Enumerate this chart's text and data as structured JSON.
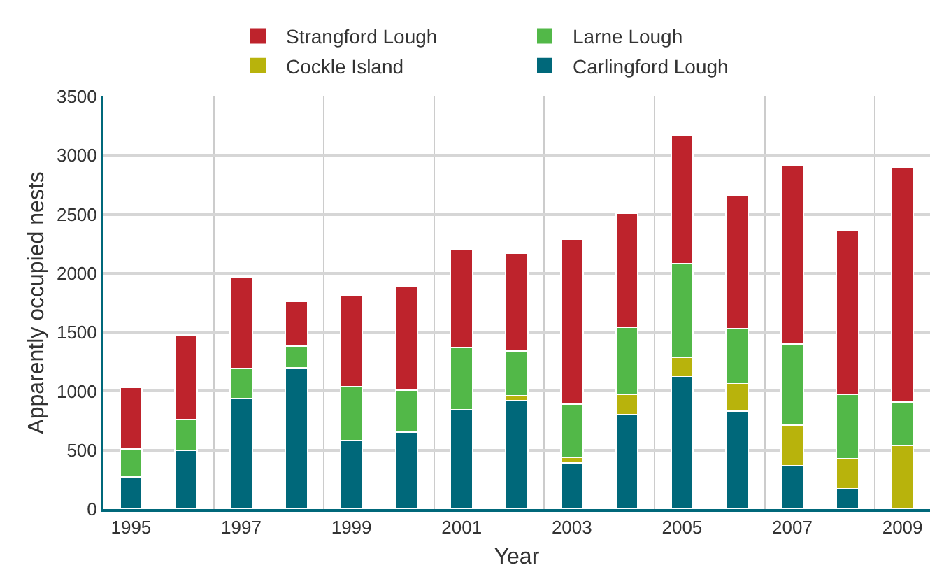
{
  "chart_data": {
    "type": "bar",
    "stacked": true,
    "xlabel": "Year",
    "ylabel": "Apparently occupied nests",
    "categories": [
      "1995",
      null,
      "1997",
      null,
      "1999",
      null,
      "2001",
      null,
      "2003",
      null,
      "2005",
      null,
      "2007",
      null,
      "2009"
    ],
    "series": [
      {
        "name": "Carlingford Lough",
        "color": "#00687a",
        "values": [
          270,
          500,
          940,
          1200,
          580,
          650,
          840,
          920,
          390,
          800,
          1130,
          830,
          370,
          170,
          0
        ]
      },
      {
        "name": "Cockle Island",
        "color": "#b8b30c",
        "values": [
          0,
          0,
          0,
          0,
          0,
          0,
          0,
          40,
          50,
          170,
          160,
          240,
          340,
          260,
          540
        ]
      },
      {
        "name": "Larne Lough",
        "color": "#52b848",
        "values": [
          240,
          260,
          250,
          180,
          460,
          360,
          530,
          380,
          450,
          570,
          790,
          460,
          690,
          540,
          370
        ]
      },
      {
        "name": "Strangford Lough",
        "color": "#be232c",
        "values": [
          520,
          710,
          780,
          380,
          770,
          880,
          830,
          830,
          1400,
          970,
          1090,
          1130,
          1520,
          1390,
          1990
        ]
      }
    ],
    "ylim": [
      0,
      3500
    ],
    "yticks": [
      0,
      500,
      1000,
      1500,
      2000,
      2500,
      3000,
      3500
    ],
    "grid": true,
    "legend": "top"
  }
}
